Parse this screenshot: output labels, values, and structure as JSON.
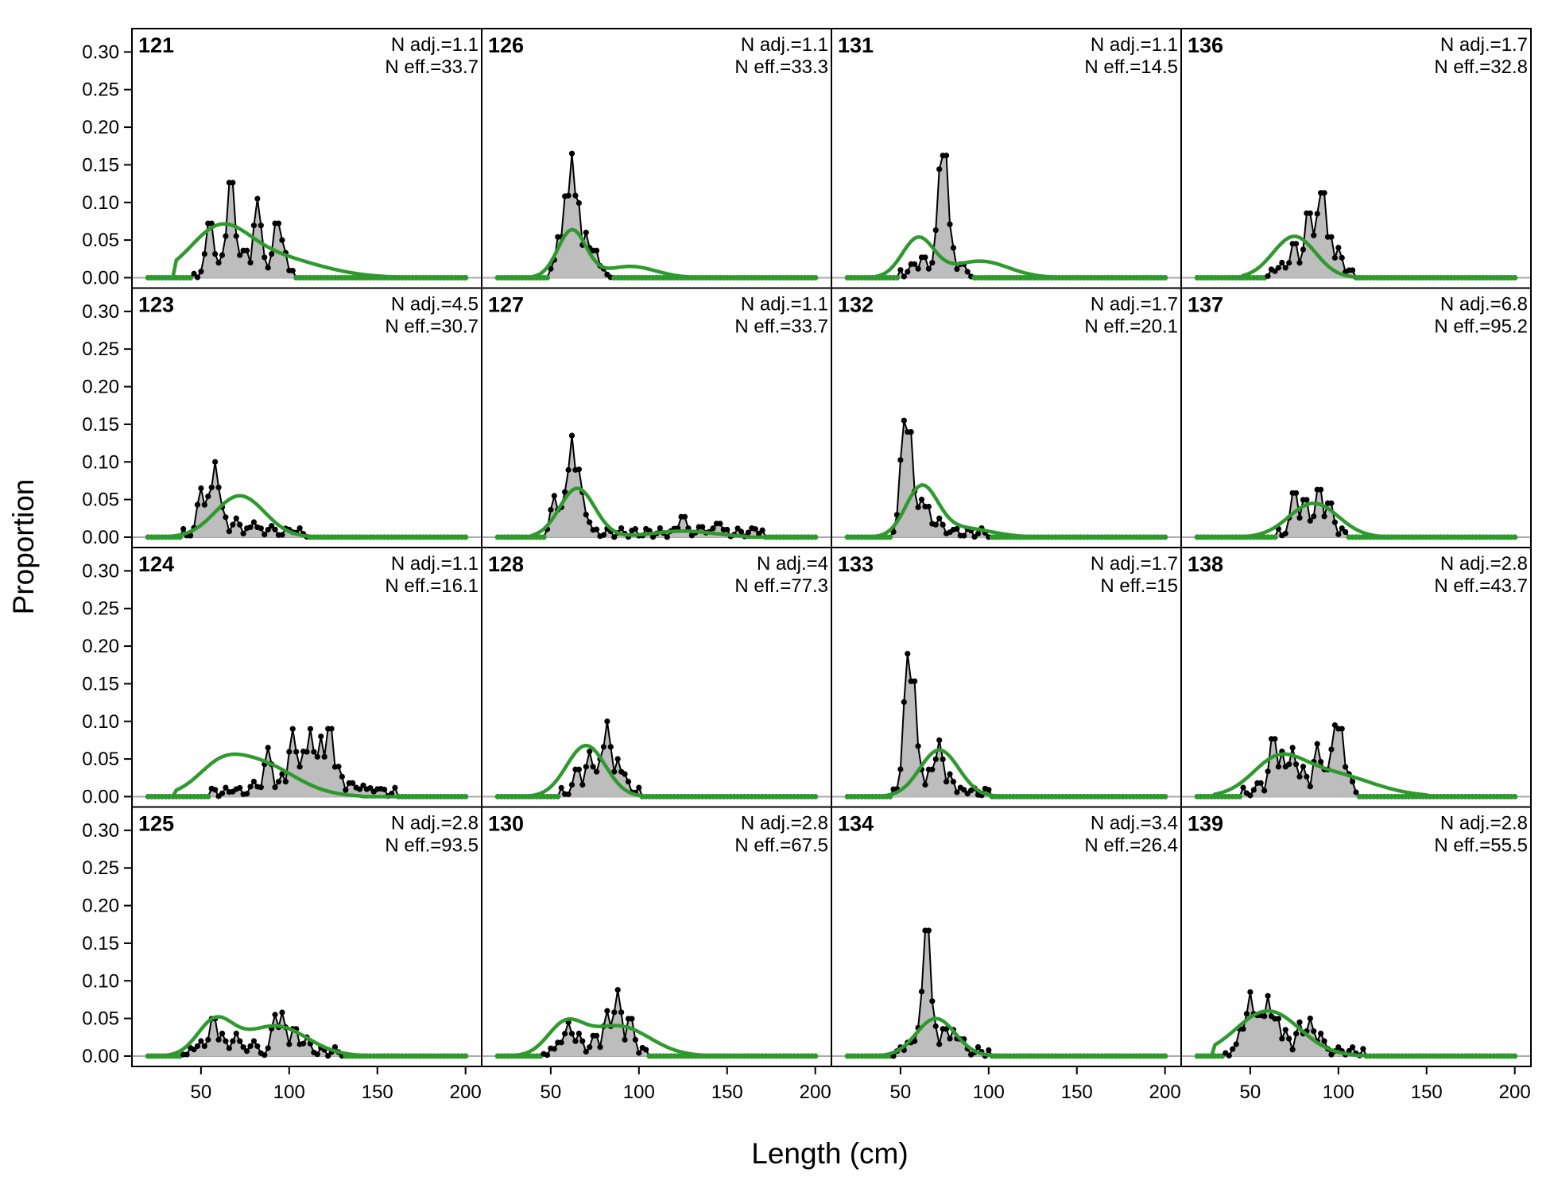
{
  "chart_data": {
    "type": "line",
    "layout": "4x4 small multiples; shaded area = observed proportion, green line = expected proportion",
    "xlabel": "Length (cm)",
    "ylabel": "Proportion",
    "xlim": [
      20,
      200
    ],
    "ylim": [
      0,
      0.3
    ],
    "x_ticks": [
      50,
      100,
      150,
      200
    ],
    "y_ticks": [
      "0.00",
      "0.05",
      "0.10",
      "0.15",
      "0.20",
      "0.25",
      "0.30"
    ],
    "colors": {
      "observed_fill": "#bdbdbd",
      "observed_line": "#000000",
      "expected_line": "#2e9a2e",
      "zero_line": "#aaaaaa"
    },
    "panels": [
      {
        "label": "121",
        "n_adj": "N adj.=1.1",
        "n_eff": "N eff.=33.7",
        "obs_peaks": [
          [
            55,
            0.08
          ],
          [
            62,
            0.03
          ],
          [
            67,
            0.14
          ],
          [
            72,
            0.03
          ],
          [
            75,
            0.04
          ],
          [
            82,
            0.105
          ],
          [
            85,
            0.03
          ],
          [
            90,
            0.02
          ],
          [
            93,
            0.08
          ],
          [
            96,
            0.05
          ]
        ],
        "obs_range": [
          45,
          102
        ],
        "exp_peaks": [
          [
            60,
            0.05
          ],
          [
            85,
            0.03
          ]
        ],
        "exp_sd": 16,
        "exp_range": [
          45,
          150
        ]
      },
      {
        "label": "126",
        "n_adj": "N adj.=1.1",
        "n_eff": "N eff.=33.3",
        "obs_peaks": [
          [
            55,
            0.06
          ],
          [
            59,
            0.12
          ],
          [
            62,
            0.165
          ],
          [
            65,
            0.11
          ],
          [
            70,
            0.06
          ],
          [
            75,
            0.04
          ]
        ],
        "obs_range": [
          50,
          85
        ],
        "exp_peaks": [
          [
            62,
            0.063
          ],
          [
            95,
            0.015
          ]
        ],
        "exp_sd": 8,
        "exp_range": [
          50,
          150
        ]
      },
      {
        "label": "131",
        "n_adj": "N adj.=1.1",
        "n_eff": "N eff.=14.5",
        "obs_peaks": [
          [
            57,
            0.02
          ],
          [
            63,
            0.03
          ],
          [
            70,
            0.03
          ],
          [
            73,
            0.16
          ],
          [
            75,
            0.18
          ],
          [
            78,
            0.06
          ],
          [
            85,
            0.02
          ]
        ],
        "obs_range": [
          50,
          90
        ],
        "exp_peaks": [
          [
            60,
            0.052
          ],
          [
            95,
            0.022
          ]
        ],
        "exp_sd": 9,
        "exp_range": [
          45,
          130
        ]
      },
      {
        "label": "136",
        "n_adj": "N adj.=1.7",
        "n_eff": "N eff.=32.8",
        "obs_peaks": [
          [
            68,
            0.02
          ],
          [
            75,
            0.05
          ],
          [
            83,
            0.095
          ],
          [
            88,
            0.085
          ],
          [
            91,
            0.125
          ],
          [
            95,
            0.06
          ],
          [
            100,
            0.04
          ]
        ],
        "obs_range": [
          60,
          108
        ],
        "exp_peaks": [
          [
            75,
            0.055
          ]
        ],
        "exp_sd": 12,
        "exp_range": [
          55,
          120
        ]
      },
      {
        "label": "123",
        "n_adj": "N adj.=4.5",
        "n_eff": "N eff.=30.7",
        "obs_peaks": [
          [
            50,
            0.065
          ],
          [
            55,
            0.06
          ],
          [
            58,
            0.1
          ],
          [
            62,
            0.04
          ],
          [
            70,
            0.025
          ],
          [
            80,
            0.02
          ],
          [
            90,
            0.015
          ],
          [
            100,
            0.01
          ]
        ],
        "obs_range": [
          40,
          110
        ],
        "exp_peaks": [
          [
            72,
            0.055
          ]
        ],
        "exp_sd": 14,
        "exp_range": [
          40,
          140
        ]
      },
      {
        "label": "127",
        "n_adj": "N adj.=1.1",
        "n_eff": "N eff.=33.7",
        "obs_peaks": [
          [
            52,
            0.055
          ],
          [
            58,
            0.06
          ],
          [
            62,
            0.135
          ],
          [
            66,
            0.09
          ],
          [
            70,
            0.03
          ],
          [
            125,
            0.03
          ],
          [
            135,
            0.015
          ],
          [
            145,
            0.02
          ],
          [
            165,
            0.012
          ]
        ],
        "obs_range": [
          48,
          170
        ],
        "exp_peaks": [
          [
            65,
            0.065
          ],
          [
            125,
            0.008
          ]
        ],
        "exp_sd": 10,
        "exp_range": [
          50,
          150
        ]
      },
      {
        "label": "132",
        "n_adj": "N adj.=1.7",
        "n_eff": "N eff.=20.1",
        "obs_peaks": [
          [
            52,
            0.155
          ],
          [
            55,
            0.155
          ],
          [
            58,
            0.06
          ],
          [
            62,
            0.05
          ],
          [
            65,
            0.045
          ],
          [
            72,
            0.025
          ],
          [
            80,
            0.01
          ]
        ],
        "obs_range": [
          45,
          100
        ],
        "exp_peaks": [
          [
            62,
            0.065
          ],
          [
            85,
            0.012
          ]
        ],
        "exp_sd": 9,
        "exp_range": [
          45,
          130
        ]
      },
      {
        "label": "137",
        "n_adj": "N adj.=6.8",
        "n_eff": "N eff.=95.2",
        "obs_peaks": [
          [
            75,
            0.065
          ],
          [
            81,
            0.055
          ],
          [
            89,
            0.07
          ],
          [
            95,
            0.05
          ]
        ],
        "obs_range": [
          65,
          105
        ],
        "exp_peaks": [
          [
            86,
            0.045
          ]
        ],
        "exp_sd": 14,
        "exp_range": [
          50,
          130
        ]
      },
      {
        "label": "124",
        "n_adj": "N adj.=1.1",
        "n_eff": "N eff.=16.1",
        "obs_peaks": [
          [
            70,
            0.01
          ],
          [
            80,
            0.02
          ],
          [
            88,
            0.065
          ],
          [
            96,
            0.03
          ],
          [
            102,
            0.09
          ],
          [
            108,
            0.06
          ],
          [
            112,
            0.09
          ],
          [
            118,
            0.08
          ],
          [
            123,
            0.1
          ],
          [
            128,
            0.04
          ],
          [
            135,
            0.02
          ],
          [
            142,
            0.015
          ],
          [
            150,
            0.01
          ]
        ],
        "obs_range": [
          55,
          160
        ],
        "exp_peaks": [
          [
            60,
            0.02
          ],
          [
            80,
            0.047
          ]
        ],
        "exp_sd": 12,
        "exp_range": [
          45,
          130
        ]
      },
      {
        "label": "128",
        "n_adj": "N adj.=4",
        "n_eff": "N eff.=77.3",
        "obs_peaks": [
          [
            65,
            0.04
          ],
          [
            72,
            0.06
          ],
          [
            78,
            0.05
          ],
          [
            82,
            0.1
          ],
          [
            88,
            0.05
          ],
          [
            92,
            0.03
          ]
        ],
        "obs_range": [
          55,
          100
        ],
        "exp_peaks": [
          [
            70,
            0.068
          ]
        ],
        "exp_sd": 11,
        "exp_range": [
          40,
          150
        ]
      },
      {
        "label": "133",
        "n_adj": "N adj.=1.7",
        "n_eff": "N eff.=15",
        "obs_peaks": [
          [
            54,
            0.19
          ],
          [
            57,
            0.17
          ],
          [
            61,
            0.04
          ],
          [
            67,
            0.04
          ],
          [
            72,
            0.075
          ],
          [
            78,
            0.03
          ],
          [
            85,
            0.01
          ]
        ],
        "obs_range": [
          45,
          100
        ],
        "exp_peaks": [
          [
            72,
            0.062
          ]
        ],
        "exp_sd": 11,
        "exp_range": [
          40,
          150
        ]
      },
      {
        "label": "138",
        "n_adj": "N adj.=2.8",
        "n_eff": "N eff.=43.7",
        "obs_peaks": [
          [
            55,
            0.02
          ],
          [
            63,
            0.085
          ],
          [
            68,
            0.06
          ],
          [
            74,
            0.065
          ],
          [
            80,
            0.04
          ],
          [
            88,
            0.07
          ],
          [
            93,
            0.04
          ],
          [
            98,
            0.095
          ],
          [
            101,
            0.1
          ],
          [
            106,
            0.03
          ]
        ],
        "obs_range": [
          45,
          110
        ],
        "exp_peaks": [
          [
            65,
            0.037
          ],
          [
            92,
            0.032
          ]
        ],
        "exp_sd": 14,
        "exp_range": [
          40,
          140
        ]
      },
      {
        "label": "125",
        "n_adj": "N adj.=2.8",
        "n_eff": "N eff.=93.5",
        "obs_peaks": [
          [
            50,
            0.02
          ],
          [
            57,
            0.055
          ],
          [
            62,
            0.03
          ],
          [
            70,
            0.03
          ],
          [
            80,
            0.02
          ],
          [
            92,
            0.055
          ],
          [
            96,
            0.058
          ],
          [
            103,
            0.04
          ],
          [
            110,
            0.025
          ]
        ],
        "obs_range": [
          40,
          130
        ],
        "exp_peaks": [
          [
            58,
            0.045
          ],
          [
            92,
            0.04
          ]
        ],
        "exp_sd": 10,
        "exp_range": [
          40,
          150
        ]
      },
      {
        "label": "130",
        "n_adj": "N adj.=2.8",
        "n_eff": "N eff.=67.5",
        "obs_peaks": [
          [
            55,
            0.02
          ],
          [
            60,
            0.045
          ],
          [
            66,
            0.03
          ],
          [
            75,
            0.03
          ],
          [
            82,
            0.06
          ],
          [
            88,
            0.088
          ],
          [
            95,
            0.055
          ]
        ],
        "obs_range": [
          45,
          105
        ],
        "exp_peaks": [
          [
            58,
            0.038
          ],
          [
            88,
            0.04
          ]
        ],
        "exp_sd": 10,
        "exp_range": [
          40,
          150
        ]
      },
      {
        "label": "134",
        "n_adj": "N adj.=3.4",
        "n_eff": "N eff.=26.4",
        "obs_peaks": [
          [
            55,
            0.02
          ],
          [
            60,
            0.03
          ],
          [
            63,
            0.095
          ],
          [
            65,
            0.185
          ],
          [
            68,
            0.06
          ],
          [
            75,
            0.04
          ],
          [
            80,
            0.035
          ],
          [
            85,
            0.025
          ]
        ],
        "obs_range": [
          45,
          100
        ],
        "exp_peaks": [
          [
            70,
            0.05
          ]
        ],
        "exp_sd": 11,
        "exp_range": [
          40,
          150
        ]
      },
      {
        "label": "139",
        "n_adj": "N adj.=2.8",
        "n_eff": "N eff.=55.5",
        "obs_peaks": [
          [
            45,
            0.04
          ],
          [
            50,
            0.085
          ],
          [
            55,
            0.06
          ],
          [
            60,
            0.08
          ],
          [
            65,
            0.055
          ],
          [
            70,
            0.035
          ],
          [
            78,
            0.045
          ],
          [
            84,
            0.05
          ],
          [
            90,
            0.03
          ],
          [
            100,
            0.01
          ]
        ],
        "obs_range": [
          35,
          115
        ],
        "exp_peaks": [
          [
            60,
            0.06
          ]
        ],
        "exp_sd": 18,
        "exp_range": [
          40,
          170
        ]
      }
    ]
  }
}
